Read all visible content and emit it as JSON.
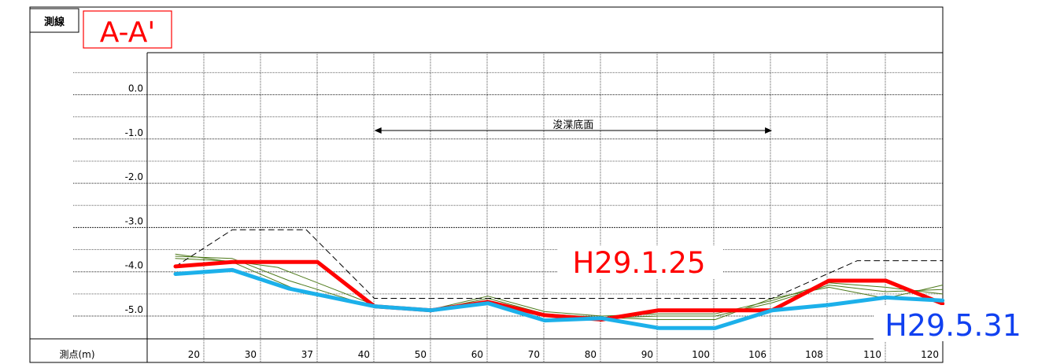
{
  "header": {
    "line_label": "測線",
    "section_label": "A-A'"
  },
  "chart_data": {
    "type": "line",
    "x_label": "測点(m)",
    "x_tick_labels": [
      "20",
      "30",
      "37",
      "40",
      "50",
      "60",
      "70",
      "80",
      "90",
      "100",
      "106",
      "108",
      "110",
      "120"
    ],
    "y_ticks": [
      0.0,
      -1.0,
      -2.0,
      -3.0,
      -4.0,
      -5.0
    ],
    "y_tick_labels": [
      "0.0",
      "-1.0",
      "-2.0",
      "-3.0",
      "-4.0",
      "-5.0"
    ],
    "ylim": [
      -5.5,
      1.0
    ],
    "grid": true,
    "dredge_label": "浚渫底面",
    "dredge_range": [
      3.5,
      10.5
    ],
    "colors": {
      "grid": "#000000",
      "red": "#ff0000",
      "blue": "#1cb0ea",
      "green": "#4e7a1c",
      "dashed": "#000000"
    },
    "series": [
      {
        "name": "H29.1.25",
        "color": "#ff0000",
        "width": 5,
        "points": [
          [
            0,
            -3.88
          ],
          [
            1,
            -3.78
          ],
          [
            2.5,
            -3.78
          ],
          [
            3.5,
            -4.78
          ],
          [
            4.5,
            -4.87
          ],
          [
            5.5,
            -4.68
          ],
          [
            6.5,
            -4.98
          ],
          [
            7.5,
            -5.08
          ],
          [
            8.5,
            -4.87
          ],
          [
            10,
            -4.87
          ],
          [
            10.5,
            -4.87
          ],
          [
            11.5,
            -4.2
          ],
          [
            12.5,
            -4.2
          ],
          [
            13.5,
            -4.72
          ]
        ]
      },
      {
        "name": "H29.5.31",
        "color": "#1cb0ea",
        "width": 5,
        "points": [
          [
            0,
            -4.05
          ],
          [
            1,
            -3.96
          ],
          [
            2,
            -4.38
          ],
          [
            3.5,
            -4.78
          ],
          [
            4.5,
            -4.87
          ],
          [
            5.5,
            -4.71
          ],
          [
            6.5,
            -5.1
          ],
          [
            7.5,
            -5.05
          ],
          [
            8.5,
            -5.27
          ],
          [
            9.5,
            -5.27
          ],
          [
            10.5,
            -4.87
          ],
          [
            11.5,
            -4.75
          ],
          [
            12.5,
            -4.58
          ],
          [
            13.5,
            -4.65
          ]
        ]
      },
      {
        "color": "#4e7a1c",
        "width": 1,
        "points": [
          [
            0,
            -3.6
          ],
          [
            1,
            -3.78
          ],
          [
            2.3,
            -4.5
          ],
          [
            3.5,
            -4.75
          ],
          [
            4.5,
            -4.87
          ],
          [
            5.5,
            -4.6
          ],
          [
            6.5,
            -4.95
          ],
          [
            7.5,
            -5.03
          ],
          [
            8.5,
            -5.08
          ],
          [
            9.5,
            -5.08
          ],
          [
            10.5,
            -4.6
          ],
          [
            11.5,
            -4.35
          ],
          [
            12.5,
            -4.6
          ],
          [
            13.5,
            -4.3
          ]
        ]
      },
      {
        "color": "#4e7a1c",
        "width": 1,
        "points": [
          [
            0,
            -3.65
          ],
          [
            1,
            -3.7
          ],
          [
            2,
            -4.2
          ],
          [
            3.5,
            -4.8
          ],
          [
            4.5,
            -4.87
          ],
          [
            5.5,
            -4.65
          ],
          [
            6.5,
            -4.95
          ],
          [
            7.5,
            -5.05
          ],
          [
            8.5,
            -5.0
          ],
          [
            9.5,
            -5.0
          ],
          [
            10.5,
            -4.7
          ],
          [
            11.5,
            -4.3
          ],
          [
            12.5,
            -4.45
          ],
          [
            13.5,
            -4.4
          ]
        ]
      },
      {
        "color": "#4e7a1c",
        "width": 1,
        "points": [
          [
            0,
            -3.7
          ],
          [
            1,
            -3.76
          ],
          [
            1.8,
            -3.9
          ],
          [
            3.5,
            -4.75
          ],
          [
            4.5,
            -4.85
          ],
          [
            5.5,
            -4.55
          ],
          [
            6.5,
            -4.9
          ],
          [
            7.5,
            -5.0
          ],
          [
            8.5,
            -4.95
          ],
          [
            9.5,
            -4.95
          ],
          [
            10.5,
            -4.65
          ],
          [
            11.5,
            -4.25
          ],
          [
            12.5,
            -4.35
          ],
          [
            13.5,
            -4.5
          ]
        ]
      },
      {
        "color": "#000000",
        "width": 1,
        "dash": "7,5",
        "points": [
          [
            0,
            -3.88
          ],
          [
            1,
            -3.05
          ],
          [
            2.3,
            -3.05
          ],
          [
            3.5,
            -4.6
          ],
          [
            10.5,
            -4.6
          ],
          [
            12,
            -3.75
          ],
          [
            13.5,
            -3.75
          ]
        ]
      }
    ],
    "annotations": [
      {
        "text": "H29.1.25",
        "color": "#ff0000"
      },
      {
        "text": "H29.5.31",
        "color": "#1040f0"
      }
    ]
  }
}
